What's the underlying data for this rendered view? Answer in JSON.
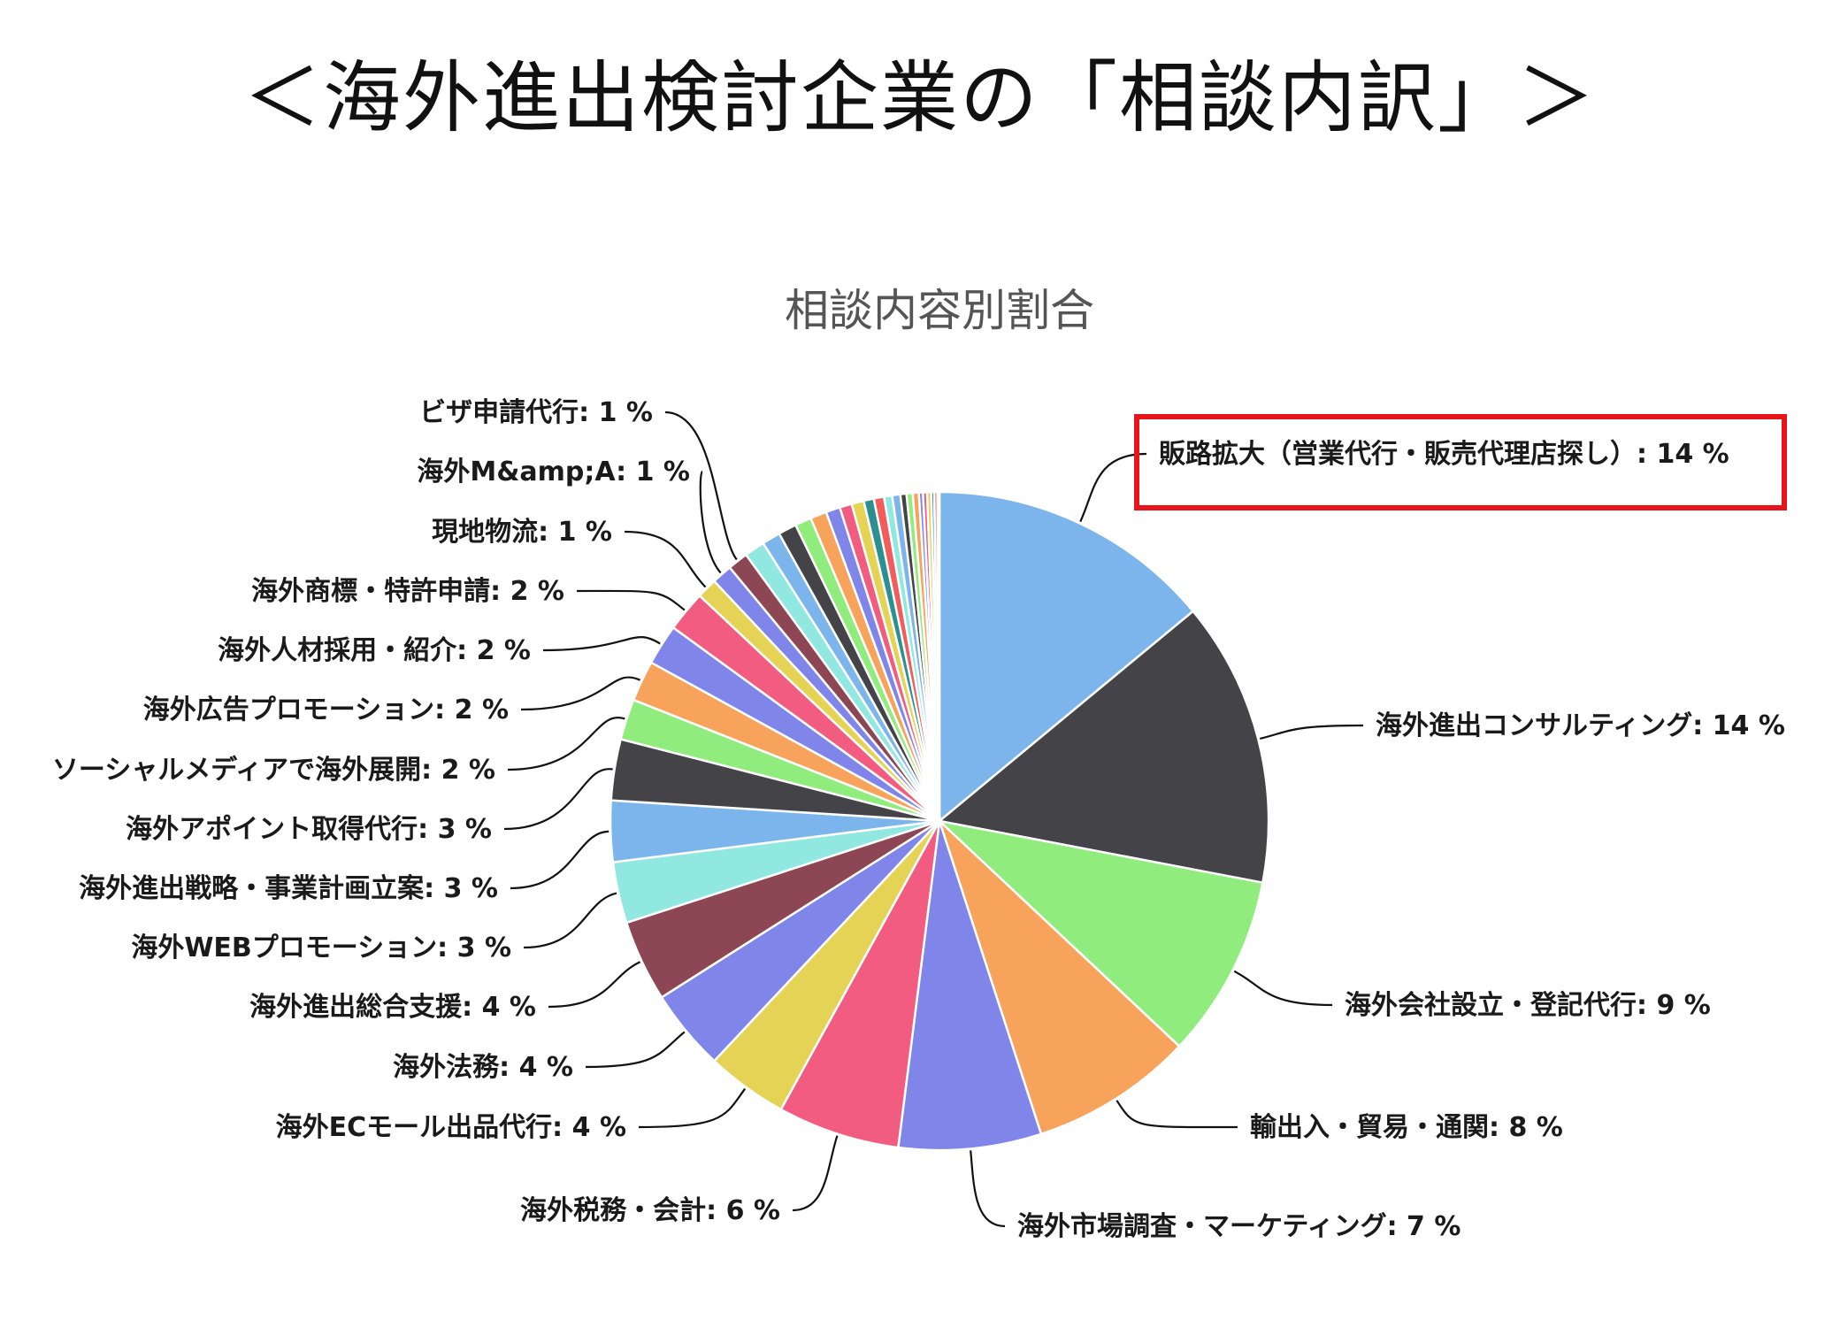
{
  "page": {
    "title": "＜海外進出検討企業の「相談内訳」＞"
  },
  "colors": {
    "highlight_box": "#e8141b",
    "slice_stroke": "#ffffff",
    "palette": [
      "#7cb5ec",
      "#434348",
      "#90ed7d",
      "#f7a35c",
      "#8085e9",
      "#f15c80",
      "#e4d354",
      "#2b908f",
      "#f45b5b",
      "#91e8e1"
    ]
  },
  "chart_data": {
    "type": "pie",
    "title": "相談内容別割合",
    "highlighted": "販路拡大（営業代行・販売代理店探し）",
    "slices": [
      {
        "name": "販路拡大（営業代行・販売代理店探し）",
        "value": 14,
        "label": "販路拡大（営業代行・販売代理店探し）: 14 %",
        "color": "#7cb5ec"
      },
      {
        "name": "海外進出コンサルティング",
        "value": 14,
        "label": "海外進出コンサルティング: 14 %",
        "color": "#434348"
      },
      {
        "name": "海外会社設立・登記代行",
        "value": 9,
        "label": "海外会社設立・登記代行: 9 %",
        "color": "#90ed7d"
      },
      {
        "name": "輸出入・貿易・通関",
        "value": 8,
        "label": "輸出入・貿易・通関: 8 %",
        "color": "#f7a35c"
      },
      {
        "name": "海外市場調査・マーケティング",
        "value": 7,
        "label": "海外市場調査・マーケティング: 7 %",
        "color": "#8085e9"
      },
      {
        "name": "海外税務・会計",
        "value": 6,
        "label": "海外税務・会計: 6 %",
        "color": "#f15c80"
      },
      {
        "name": "海外ECモール出品代行",
        "value": 4,
        "label": "海外ECモール出品代行: 4 %",
        "color": "#e4d354"
      },
      {
        "name": "海外法務",
        "value": 4,
        "label": "海外法務: 4 %",
        "color": "#8085e9"
      },
      {
        "name": "海外進出総合支援",
        "value": 4,
        "label": "海外進出総合支援: 4 %",
        "color": "#8d4654"
      },
      {
        "name": "海外WEBプロモーション",
        "value": 3,
        "label": "海外WEBプロモーション: 3 %",
        "color": "#91e8e1"
      },
      {
        "name": "海外進出戦略・事業計画立案",
        "value": 3,
        "label": "海外進出戦略・事業計画立案: 3 %",
        "color": "#7cb5ec"
      },
      {
        "name": "海外アポイント取得代行",
        "value": 3,
        "label": "海外アポイント取得代行: 3 %",
        "color": "#434348"
      },
      {
        "name": "ソーシャルメディアで海外展開",
        "value": 2,
        "label": "ソーシャルメディアで海外展開: 2 %",
        "color": "#90ed7d"
      },
      {
        "name": "海外広告プロモーション",
        "value": 2,
        "label": "海外広告プロモーション: 2 %",
        "color": "#f7a35c"
      },
      {
        "name": "海外人材採用・紹介",
        "value": 2,
        "label": "海外人材採用・紹介: 2 %",
        "color": "#8085e9"
      },
      {
        "name": "海外商標・特許申請",
        "value": 2,
        "label": "海外商標・特許申請: 2 %",
        "color": "#f15c80"
      },
      {
        "name": "現地物流",
        "value": 1,
        "label": "現地物流: 1 %",
        "color": "#e4d354"
      },
      {
        "name": "海外M&amp;A",
        "value": 1,
        "label": "海外M&amp;A: 1 %",
        "color": "#8085e9"
      },
      {
        "name": "ビザ申請代行",
        "value": 1,
        "label": "ビザ申請代行: 1 %",
        "color": "#8d4654"
      },
      {
        "name": "",
        "value": 1,
        "label": "",
        "color": "#91e8e1"
      },
      {
        "name": "",
        "value": 0.9,
        "label": "",
        "color": "#7cb5ec"
      },
      {
        "name": "",
        "value": 0.9,
        "label": "",
        "color": "#434348"
      },
      {
        "name": "",
        "value": 0.8,
        "label": "",
        "color": "#90ed7d"
      },
      {
        "name": "",
        "value": 0.8,
        "label": "",
        "color": "#f7a35c"
      },
      {
        "name": "",
        "value": 0.7,
        "label": "",
        "color": "#8085e9"
      },
      {
        "name": "",
        "value": 0.6,
        "label": "",
        "color": "#f15c80"
      },
      {
        "name": "",
        "value": 0.6,
        "label": "",
        "color": "#e4d354"
      },
      {
        "name": "",
        "value": 0.5,
        "label": "",
        "color": "#2b908f"
      },
      {
        "name": "",
        "value": 0.5,
        "label": "",
        "color": "#f45b5b"
      },
      {
        "name": "",
        "value": 0.4,
        "label": "",
        "color": "#91e8e1"
      },
      {
        "name": "",
        "value": 0.4,
        "label": "",
        "color": "#7cb5ec"
      },
      {
        "name": "",
        "value": 0.3,
        "label": "",
        "color": "#434348"
      },
      {
        "name": "",
        "value": 0.3,
        "label": "",
        "color": "#90ed7d"
      },
      {
        "name": "",
        "value": 0.3,
        "label": "",
        "color": "#f7a35c"
      },
      {
        "name": "",
        "value": 0.2,
        "label": "",
        "color": "#8085e9"
      },
      {
        "name": "",
        "value": 0.2,
        "label": "",
        "color": "#f15c80"
      },
      {
        "name": "",
        "value": 0.2,
        "label": "",
        "color": "#e4d354"
      },
      {
        "name": "",
        "value": 0.15,
        "label": "",
        "color": "#2b908f"
      },
      {
        "name": "",
        "value": 0.15,
        "label": "",
        "color": "#f45b5b"
      },
      {
        "name": "",
        "value": 0.1,
        "label": "",
        "color": "#91e8e1"
      }
    ]
  }
}
